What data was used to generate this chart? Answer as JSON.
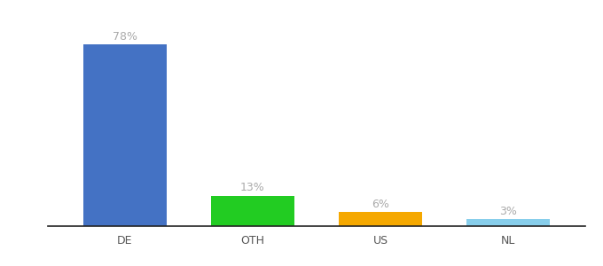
{
  "categories": [
    "DE",
    "OTH",
    "US",
    "NL"
  ],
  "values": [
    78,
    13,
    6,
    3
  ],
  "bar_colors": [
    "#4472c4",
    "#22cc22",
    "#f5a800",
    "#87ceeb"
  ],
  "labels": [
    "78%",
    "13%",
    "6%",
    "3%"
  ],
  "ylim": [
    0,
    88
  ],
  "label_color": "#aaaaaa",
  "label_fontsize": 9,
  "xlabel_fontsize": 9,
  "bar_width": 0.65,
  "background_color": "#ffffff",
  "spine_color": "#222222",
  "tick_color": "#555555"
}
